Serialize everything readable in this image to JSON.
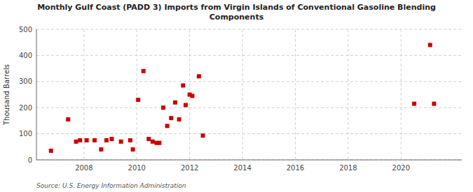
{
  "chart_data": {
    "type": "scatter",
    "title": "Monthly Gulf Coast (PADD 3) Imports from Virgin Islands of Conventional Gasoline Blending\nComponents",
    "ylabel": "Thousand Barrels",
    "source": "Source: U.S. Energy Information Administration",
    "color": "#cc0000",
    "marker": "square",
    "grid": true,
    "xlim": [
      2006.2,
      2022.3
    ],
    "ylim": [
      0,
      500
    ],
    "xticks": [
      2008,
      2010,
      2012,
      2014,
      2016,
      2018,
      2020
    ],
    "yticks": [
      0,
      100,
      200,
      300,
      400,
      500
    ],
    "x": [
      2006.75,
      2007.4,
      2007.7,
      2007.85,
      2008.1,
      2008.4,
      2008.65,
      2008.85,
      2009.05,
      2009.4,
      2009.75,
      2009.85,
      2010.05,
      2010.25,
      2010.45,
      2010.6,
      2010.75,
      2010.85,
      2011.0,
      2011.15,
      2011.3,
      2011.45,
      2011.6,
      2011.75,
      2011.85,
      2012.0,
      2012.1,
      2012.35,
      2012.5,
      2020.5,
      2021.1,
      2021.25
    ],
    "values": [
      35,
      155,
      70,
      75,
      75,
      75,
      40,
      75,
      80,
      70,
      75,
      40,
      230,
      340,
      80,
      70,
      65,
      65,
      200,
      130,
      160,
      220,
      155,
      285,
      210,
      250,
      245,
      320,
      93,
      215,
      440,
      215
    ]
  }
}
